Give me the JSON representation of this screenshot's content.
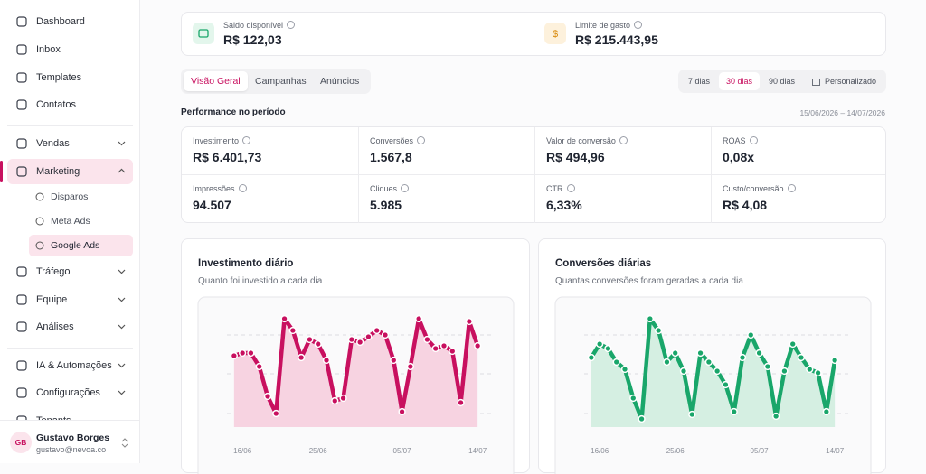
{
  "sidebar": {
    "nav": [
      "Dashboard",
      "Inbox",
      "Templates",
      "Contatos",
      "Vendas",
      "Marketing",
      "Tráfego",
      "Equipe",
      "Análises",
      "IA & Automações",
      "Configurações",
      "Tenants"
    ],
    "submenu": [
      "Disparos",
      "Meta Ads",
      "Google Ads"
    ],
    "user": {
      "initials": "GB",
      "name": "Gustavo Borges",
      "email": "gustavo@nevoa.co"
    }
  },
  "balance": [
    {
      "label": "Saldo disponível",
      "value": "R$ 122,03"
    },
    {
      "label": "Limite de gasto",
      "value": "R$ 215.443,95"
    }
  ],
  "tabs": [
    "Visão Geral",
    "Campanhas",
    "Anúncios"
  ],
  "periods": [
    "7 dias",
    "30 dias",
    "90 dias",
    "Personalizado"
  ],
  "performance": {
    "title": "Performance no período",
    "range": "15/06/2026 – 14/07/2026",
    "metrics": [
      {
        "label": "Investimento",
        "value": "R$ 6.401,73"
      },
      {
        "label": "Conversões",
        "value": "1.567,8"
      },
      {
        "label": "Valor de conversão",
        "value": "R$ 494,96"
      },
      {
        "label": "ROAS",
        "value": "0,08x"
      },
      {
        "label": "Impressões",
        "value": "94.507"
      },
      {
        "label": "Cliques",
        "value": "5.985"
      },
      {
        "label": "CTR",
        "value": "6,33%"
      },
      {
        "label": "Custo/conversão",
        "value": "R$ 4,08"
      }
    ]
  },
  "chart_data": [
    {
      "type": "area",
      "title": "Investimento diário",
      "subtitle": "Quanto foi investido a cada dia",
      "color": "#c8105f",
      "fill": "#f7d3e1",
      "values": [
        79,
        82,
        82,
        67,
        34,
        15,
        120,
        107,
        77,
        97,
        92,
        74,
        29,
        32,
        97,
        94,
        100,
        107,
        102,
        74,
        17,
        67,
        120,
        97,
        87,
        90,
        84,
        27,
        117,
        90
      ],
      "xlim": [
        -3,
        32
      ],
      "ylim": [
        0,
        130
      ],
      "gridlines": [
        15,
        59,
        102
      ],
      "xticks": [
        {
          "value": 1,
          "label": "16/06"
        },
        {
          "value": 10,
          "label": "25/06"
        },
        {
          "value": 20,
          "label": "05/07"
        },
        {
          "value": 29,
          "label": "14/07"
        }
      ]
    },
    {
      "type": "area",
      "title": "Conversões diárias",
      "subtitle": "Quantas conversões foram geradas a cada dia",
      "color": "#19a66a",
      "fill": "#d5efe2",
      "values": [
        77,
        92,
        87,
        72,
        64,
        32,
        9,
        120,
        107,
        72,
        82,
        62,
        14,
        82,
        72,
        62,
        47,
        17,
        77,
        102,
        82,
        67,
        12,
        62,
        92,
        77,
        64,
        60,
        17,
        74
      ],
      "xlim": [
        -3,
        32
      ],
      "ylim": [
        0,
        130
      ],
      "gridlines": [
        15,
        59,
        102
      ],
      "xticks": [
        {
          "value": 1,
          "label": "16/06"
        },
        {
          "value": 10,
          "label": "25/06"
        },
        {
          "value": 20,
          "label": "05/07"
        },
        {
          "value": 29,
          "label": "14/07"
        }
      ]
    }
  ]
}
